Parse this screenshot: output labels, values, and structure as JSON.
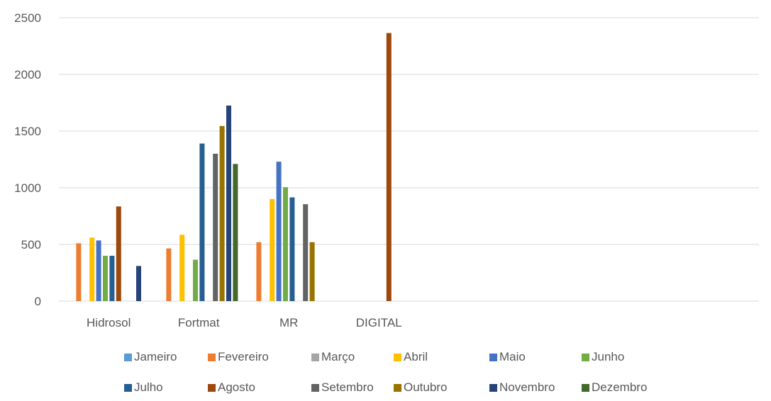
{
  "chart_data": {
    "type": "bar",
    "categories": [
      "Hidrosol",
      "Fortmat",
      "MR",
      "DIGITAL"
    ],
    "ylim": [
      0,
      2500
    ],
    "yticks": [
      0,
      500,
      1000,
      1500,
      2000,
      2500
    ],
    "grid": true,
    "legend_position": "bottom",
    "series": [
      {
        "name": "Jameiro",
        "color": "#5B9BD5",
        "values": [
          null,
          null,
          null,
          null
        ]
      },
      {
        "name": "Fevereiro",
        "color": "#ED7D31",
        "values": [
          510,
          465,
          520,
          null
        ]
      },
      {
        "name": "Março",
        "color": "#A5A5A5",
        "values": [
          null,
          null,
          null,
          null
        ]
      },
      {
        "name": "Abril",
        "color": "#FFC000",
        "values": [
          560,
          585,
          900,
          null
        ]
      },
      {
        "name": "Maio",
        "color": "#4472C4",
        "values": [
          535,
          null,
          1230,
          null
        ]
      },
      {
        "name": "Junho",
        "color": "#70AD47",
        "values": [
          400,
          365,
          1005,
          null
        ]
      },
      {
        "name": "Julho",
        "color": "#255E91",
        "values": [
          400,
          1390,
          915,
          null
        ]
      },
      {
        "name": "Agosto",
        "color": "#9E480E",
        "values": [
          835,
          null,
          null,
          2365
        ]
      },
      {
        "name": "Setembro",
        "color": "#636363",
        "values": [
          null,
          1300,
          855,
          null
        ]
      },
      {
        "name": "Outubro",
        "color": "#997300",
        "values": [
          null,
          1545,
          520,
          null
        ]
      },
      {
        "name": "Novembro",
        "color": "#264478",
        "values": [
          310,
          1725,
          null,
          null
        ]
      },
      {
        "name": "Dezembro",
        "color": "#43682B",
        "values": [
          null,
          1210,
          null,
          null
        ]
      }
    ]
  }
}
